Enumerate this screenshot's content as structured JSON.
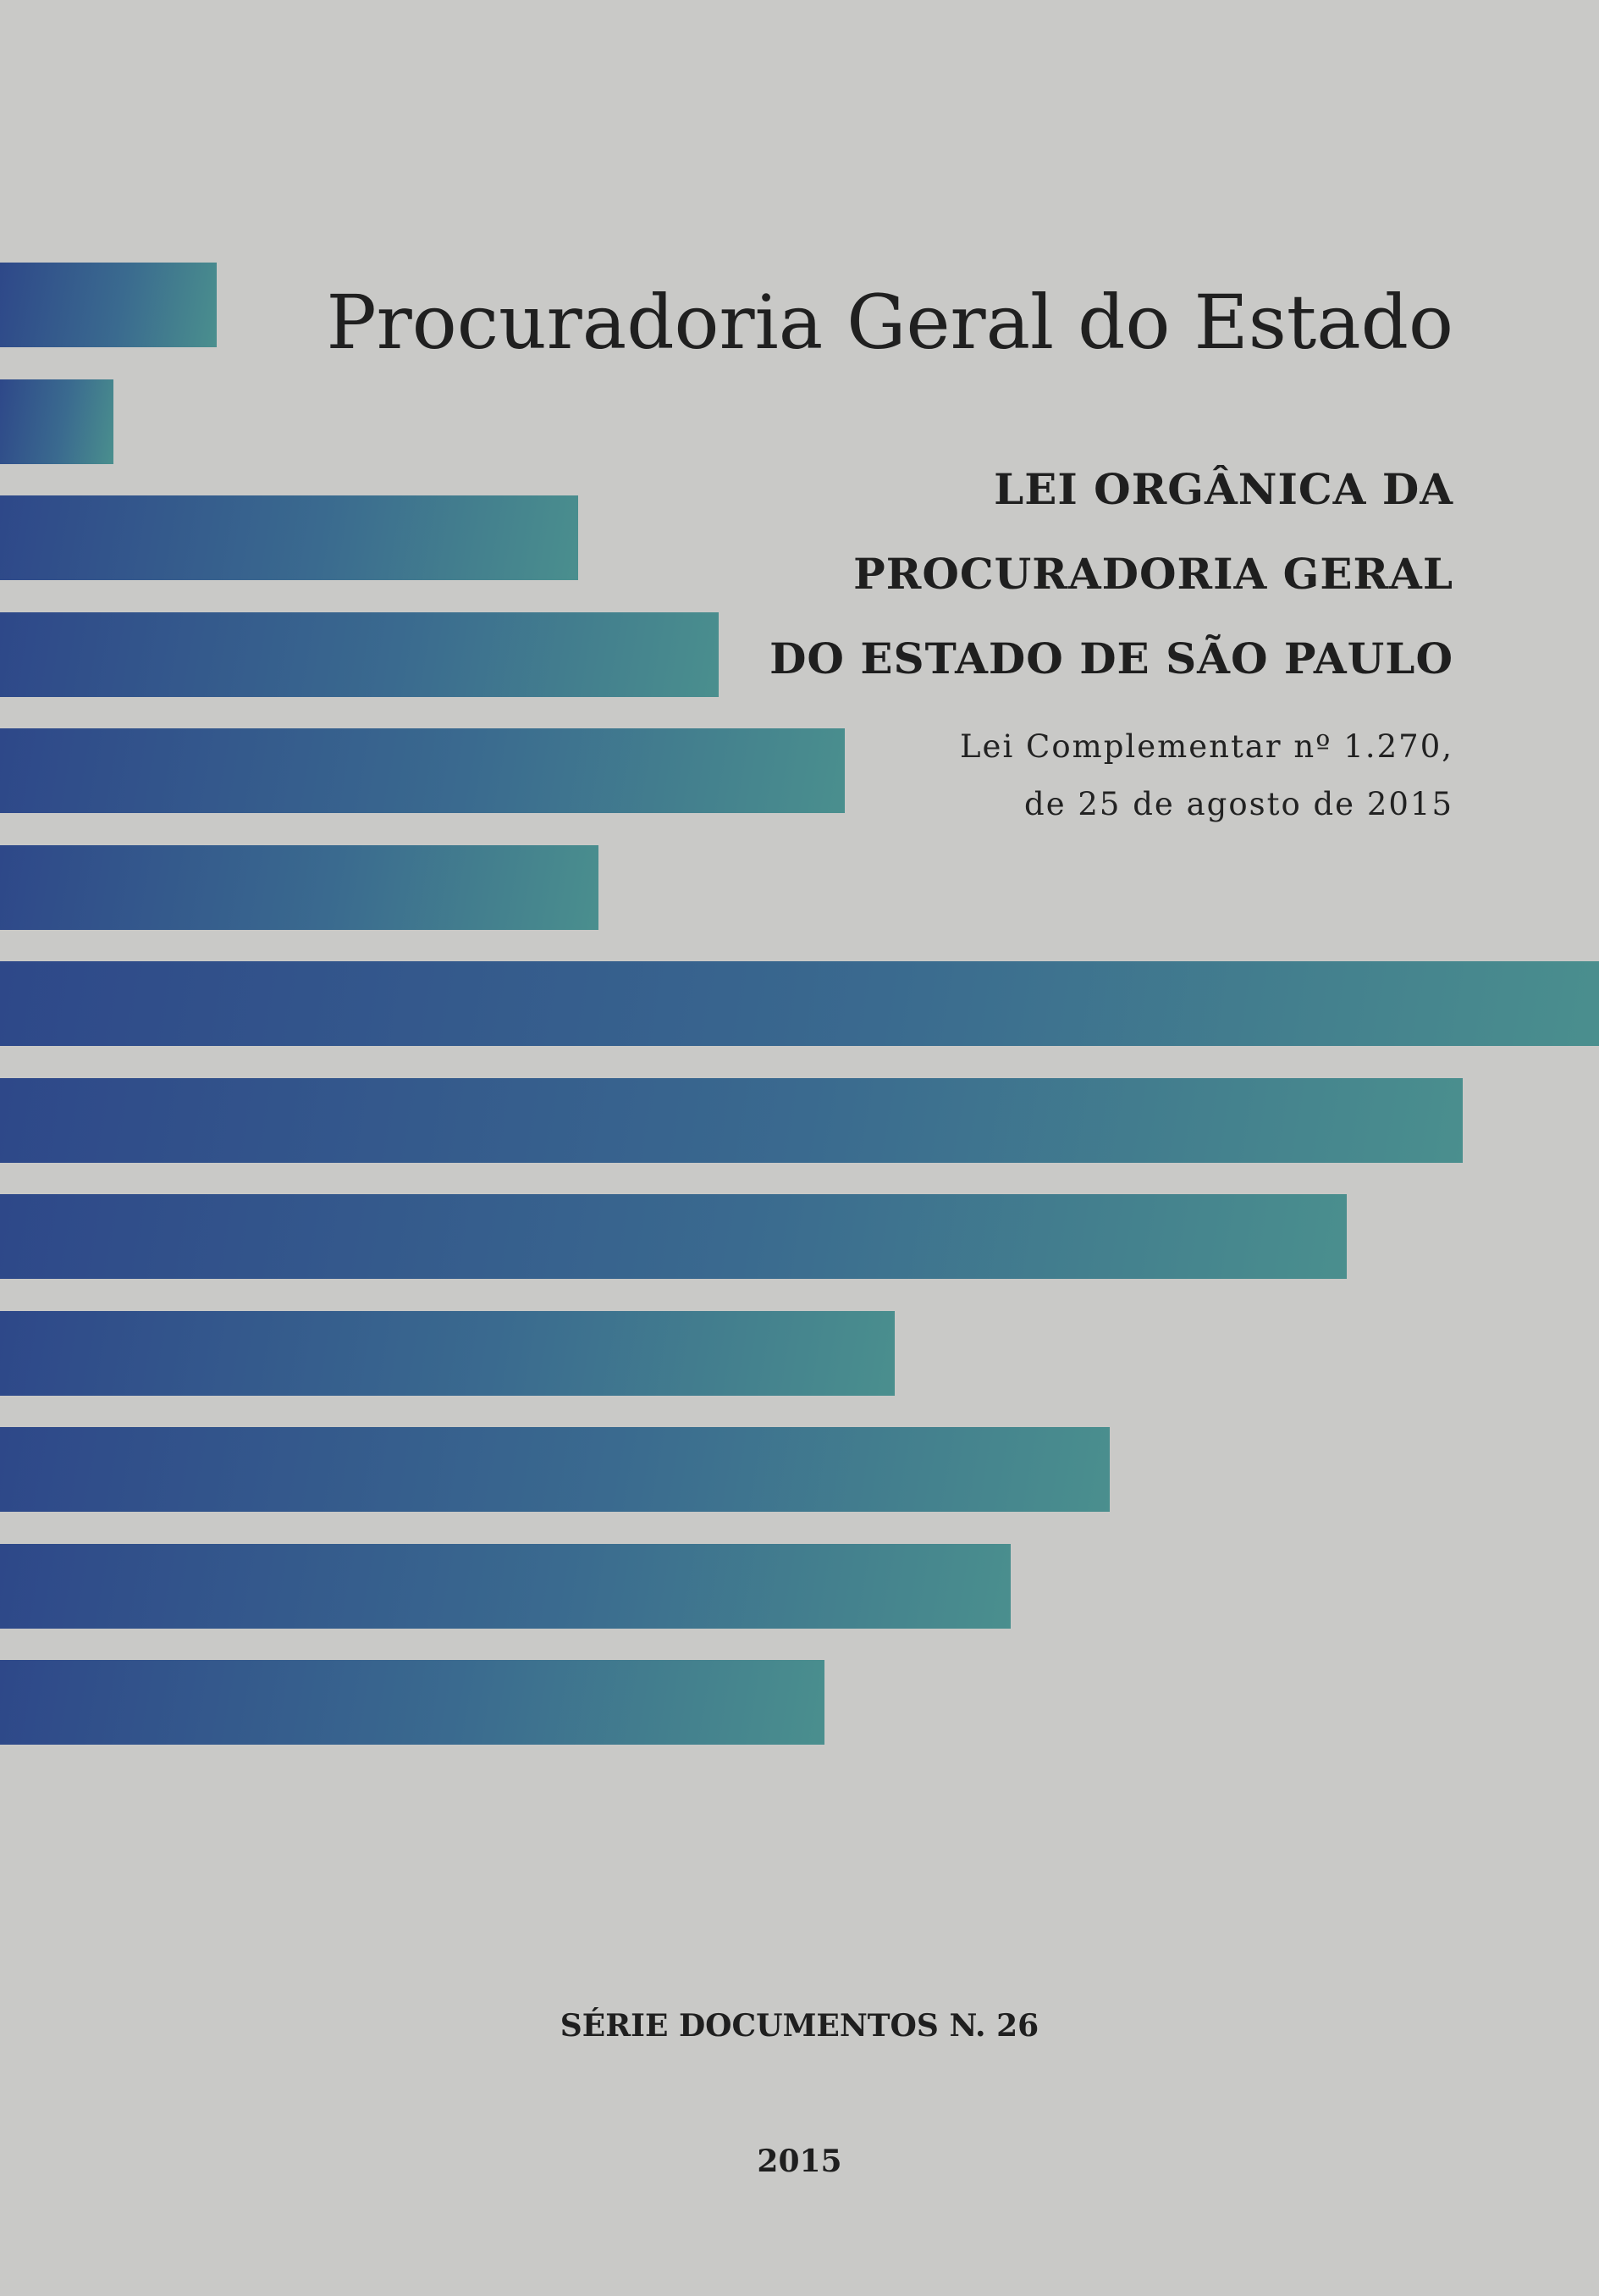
{
  "cover": {
    "organization": "Procuradoria Geral do Estado",
    "title_lines": [
      "LEI ORGÂNICA DA",
      "PROCURADORIA GERAL",
      "DO ESTADO DE SÃO PAULO"
    ],
    "subtitle_lines": [
      "Lei Complementar nº 1.270,",
      "de 25 de agosto de 2015"
    ],
    "series": "SÉRIE DOCUMENTOS N. 26",
    "year": "2015"
  },
  "decoration": {
    "bar_color_start": "#2e4889",
    "bar_color_end": "#4a8f8e",
    "background_color": "#c9c9c7"
  }
}
